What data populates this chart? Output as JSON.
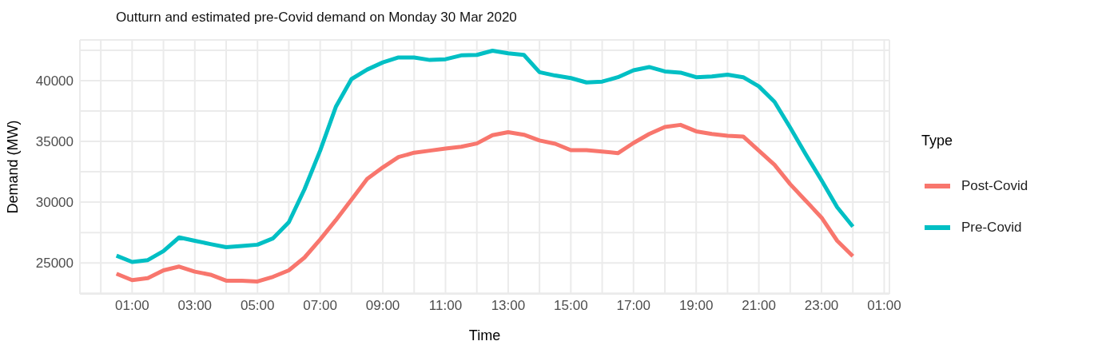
{
  "chart_data": {
    "type": "line",
    "title": "Outturn and estimated pre-Covid demand on Monday 30 Mar 2020",
    "xlabel": "Time",
    "ylabel": "Demand (MW)",
    "legend_title": "Type",
    "legend": "right",
    "grid": true,
    "marker": "none",
    "line_style": "solid",
    "x": [
      "2020-03-30T00:30",
      "2020-03-30T01:00",
      "2020-03-30T01:30",
      "2020-03-30T02:00",
      "2020-03-30T02:30",
      "2020-03-30T03:00",
      "2020-03-30T03:30",
      "2020-03-30T04:00",
      "2020-03-30T04:30",
      "2020-03-30T05:00",
      "2020-03-30T05:30",
      "2020-03-30T06:00",
      "2020-03-30T06:30",
      "2020-03-30T07:00",
      "2020-03-30T07:30",
      "2020-03-30T08:00",
      "2020-03-30T08:30",
      "2020-03-30T09:00",
      "2020-03-30T09:30",
      "2020-03-30T10:00",
      "2020-03-30T10:30",
      "2020-03-30T11:00",
      "2020-03-30T11:30",
      "2020-03-30T12:00",
      "2020-03-30T12:30",
      "2020-03-30T13:00",
      "2020-03-30T13:30",
      "2020-03-30T14:00",
      "2020-03-30T14:30",
      "2020-03-30T15:00",
      "2020-03-30T15:30",
      "2020-03-30T16:00",
      "2020-03-30T16:30",
      "2020-03-30T17:00",
      "2020-03-30T17:30",
      "2020-03-30T18:00",
      "2020-03-30T18:30",
      "2020-03-30T19:00",
      "2020-03-30T19:30",
      "2020-03-30T20:00",
      "2020-03-30T20:30",
      "2020-03-30T21:00",
      "2020-03-30T21:30",
      "2020-03-30T22:00",
      "2020-03-30T22:30",
      "2020-03-30T23:00",
      "2020-03-30T23:30",
      "2020-03-31T00:00"
    ],
    "xlim": [
      "2020-03-29T23:20",
      "2020-03-31T01:10"
    ],
    "xticks": [
      {
        "value": "2020-03-30T00:00",
        "label": null
      },
      {
        "value": "2020-03-30T01:00",
        "label": "01:00"
      },
      {
        "value": "2020-03-30T02:00",
        "label": null
      },
      {
        "value": "2020-03-30T03:00",
        "label": "03:00"
      },
      {
        "value": "2020-03-30T04:00",
        "label": null
      },
      {
        "value": "2020-03-30T05:00",
        "label": "05:00"
      },
      {
        "value": "2020-03-30T06:00",
        "label": null
      },
      {
        "value": "2020-03-30T07:00",
        "label": "07:00"
      },
      {
        "value": "2020-03-30T08:00",
        "label": null
      },
      {
        "value": "2020-03-30T09:00",
        "label": "09:00"
      },
      {
        "value": "2020-03-30T10:00",
        "label": null
      },
      {
        "value": "2020-03-30T11:00",
        "label": "11:00"
      },
      {
        "value": "2020-03-30T12:00",
        "label": null
      },
      {
        "value": "2020-03-30T13:00",
        "label": "13:00"
      },
      {
        "value": "2020-03-30T14:00",
        "label": null
      },
      {
        "value": "2020-03-30T15:00",
        "label": "15:00"
      },
      {
        "value": "2020-03-30T16:00",
        "label": null
      },
      {
        "value": "2020-03-30T17:00",
        "label": "17:00"
      },
      {
        "value": "2020-03-30T18:00",
        "label": null
      },
      {
        "value": "2020-03-30T19:00",
        "label": "19:00"
      },
      {
        "value": "2020-03-30T20:00",
        "label": null
      },
      {
        "value": "2020-03-30T21:00",
        "label": "21:00"
      },
      {
        "value": "2020-03-30T22:00",
        "label": null
      },
      {
        "value": "2020-03-30T23:00",
        "label": "23:00"
      },
      {
        "value": "2020-03-31T00:00",
        "label": null
      },
      {
        "value": "2020-03-31T01:00",
        "label": "01:00"
      }
    ],
    "ylim": [
      22450,
      43350
    ],
    "yticks": [
      {
        "value": 22500,
        "label": null
      },
      25000,
      {
        "value": 27500,
        "label": null
      },
      30000,
      {
        "value": 32500,
        "label": null
      },
      35000,
      {
        "value": 37500,
        "label": null
      },
      40000,
      {
        "value": 42500,
        "label": null
      }
    ],
    "series": [
      {
        "name": "Post-Covid",
        "color": "#f8766d",
        "values": [
          24110,
          23580,
          23750,
          24390,
          24700,
          24280,
          24030,
          23540,
          23540,
          23470,
          23860,
          24390,
          25440,
          26930,
          28520,
          30210,
          31910,
          32860,
          33710,
          34070,
          34240,
          34410,
          34560,
          34830,
          35510,
          35760,
          35550,
          35080,
          34810,
          34280,
          34280,
          34170,
          34030,
          34870,
          35610,
          36190,
          36360,
          35830,
          35610,
          35470,
          35400,
          34240,
          33070,
          31480,
          30110,
          28730,
          26820,
          25550
        ]
      },
      {
        "name": "Pre-Covid",
        "color": "#00bfc4",
        "values": [
          25600,
          25080,
          25230,
          25970,
          27100,
          26820,
          26550,
          26290,
          26400,
          26500,
          27030,
          28350,
          31060,
          34240,
          37840,
          40130,
          40910,
          41500,
          41910,
          41910,
          41700,
          41760,
          42080,
          42120,
          42460,
          42250,
          42120,
          40700,
          40420,
          40210,
          39850,
          39920,
          40280,
          40850,
          41120,
          40760,
          40660,
          40280,
          40340,
          40490,
          40280,
          39530,
          38260,
          36140,
          33920,
          31800,
          29580,
          27990
        ]
      }
    ]
  }
}
